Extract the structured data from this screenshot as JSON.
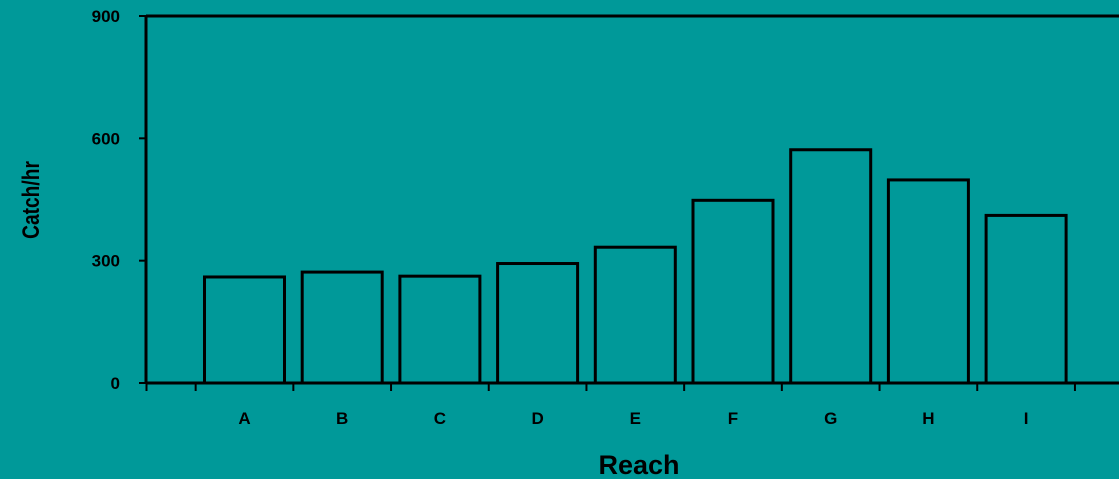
{
  "colors": {
    "background": "#009999",
    "bar_stroke": "#000000",
    "axis": "#000000"
  },
  "chart_data": {
    "type": "bar",
    "title": "",
    "xlabel": "Reach",
    "ylabel": "Catch/hr",
    "categories": [
      "A",
      "B",
      "C",
      "D",
      "E",
      "F",
      "G",
      "H",
      "I"
    ],
    "values": [
      260,
      272,
      262,
      293,
      333,
      448,
      572,
      498,
      411
    ],
    "ylim": [
      0,
      900
    ],
    "yticks": [
      "0",
      "300",
      "600",
      "900"
    ],
    "grid": false,
    "legend": "none"
  }
}
